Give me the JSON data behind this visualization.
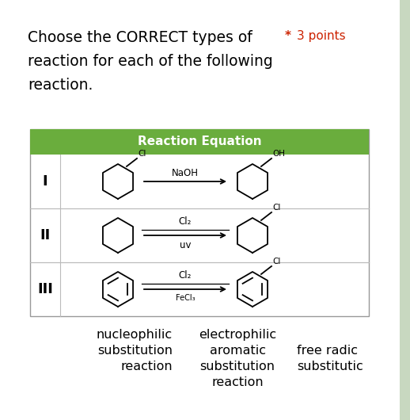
{
  "title_line1": "Choose the CORRECT types of",
  "title_line2": "reaction for each of the following",
  "title_line3": "reaction.",
  "points_star": "*",
  "points_text": "3 points",
  "points_color": "#cc2200",
  "header_text": "Reaction Equation",
  "header_bg": "#6aad3d",
  "header_text_color": "#ffffff",
  "row_labels": [
    "I",
    "II",
    "III"
  ],
  "row_I_reagent": "NaOH",
  "row_II_reagent_top": "Cl₂",
  "row_II_reagent_bot": "uv",
  "row_III_reagent_top": "Cl₂",
  "row_III_reagent_bot": "FeCl₃",
  "bg_color": "#c8d8c0",
  "table_bg": "#ffffff",
  "footer_col1_line1": "nucleophilic",
  "footer_col1_line2": "substitution",
  "footer_col1_line3": "reaction",
  "footer_col2_line1": "electrophilic",
  "footer_col2_line2": "aromatic",
  "footer_col2_line3": "substitution",
  "footer_col2_line4": "reaction",
  "footer_col3_line1": "free radic",
  "footer_col3_line2": "substitutic",
  "title_fontsize": 13.5,
  "points_fontsize": 11,
  "header_fontsize": 11,
  "label_fontsize": 13,
  "reagent_fontsize": 8.5,
  "sub_fontsize": 7.5,
  "footer_fontsize": 11.5
}
